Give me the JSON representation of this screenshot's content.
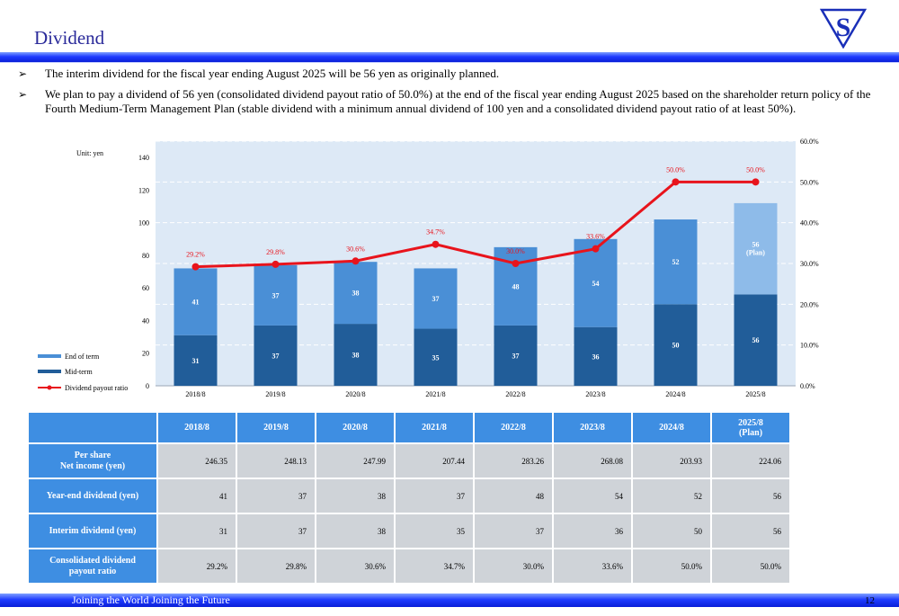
{
  "header": {
    "title": "Dividend",
    "logo_icon": "s-triangle-logo-icon"
  },
  "bullets": [
    "The interim dividend for the fiscal year ending August 2025 will be 56 yen as originally planned.",
    "We plan to pay a dividend of 56 yen (consolidated dividend payout ratio of 50.0%) at the end of the fiscal year ending August 2025 based on the shareholder return policy of the Fourth Medium-Term Management Plan (stable dividend with a minimum annual dividend of  100 yen and a consolidated dividend payout ratio of at least 50%)."
  ],
  "bullet_mark": "➢",
  "chart_data": {
    "type": "bar",
    "stacked": true,
    "unit_label": "Unit: yen",
    "categories": [
      "2018/8",
      "2019/8",
      "2020/8",
      "2021/8",
      "2022/8",
      "2023/8",
      "2024/8",
      "2025/8"
    ],
    "series": [
      {
        "name": "Mid-term",
        "values": [
          31,
          37,
          38,
          35,
          37,
          36,
          50,
          56
        ],
        "color": "#215d99"
      },
      {
        "name": "End of term",
        "values": [
          41,
          37,
          38,
          37,
          48,
          54,
          52,
          56
        ],
        "color": "#4a8fd6",
        "last_color": "#8ebbe9"
      }
    ],
    "end_of_term_labels": [
      "41",
      "37",
      "38",
      "37",
      "48",
      "54",
      "52",
      "56"
    ],
    "plan_label": "(Plan)",
    "line_series": {
      "name": "Dividend payout ratio",
      "values": [
        29.2,
        29.8,
        30.6,
        34.7,
        30.0,
        33.6,
        50.0,
        50.0
      ],
      "labels": [
        "29.2%",
        "29.8%",
        "30.6%",
        "34.7%",
        "30.0%",
        "33.6%",
        "50.0%",
        "50.0%"
      ],
      "color": "#e8141c"
    },
    "y_left": {
      "min": 0,
      "max": 150,
      "ticks": [
        0,
        20,
        40,
        60,
        80,
        100,
        120,
        140
      ]
    },
    "y_right": {
      "min": 0,
      "max": 60,
      "ticks": [
        0,
        10,
        20,
        30,
        40,
        50,
        60
      ],
      "tick_labels": [
        "0.0%",
        "10.0%",
        "20.0%",
        "30.0%",
        "40.0%",
        "50.0%",
        "60.0%"
      ]
    },
    "grid": true,
    "plot_background": "#dde9f6",
    "legend": [
      "End of term",
      "Mid-term",
      "Dividend payout ratio"
    ],
    "legend_position": "bottom-left"
  },
  "table": {
    "columns": [
      "2018/8",
      "2019/8",
      "2020/8",
      "2021/8",
      "2022/8",
      "2023/8",
      "2024/8",
      "2025/8"
    ],
    "last_column_note": "(Plan)",
    "rows": [
      {
        "label": "Per share",
        "label2": "Net income (yen)",
        "values": [
          "246.35",
          "248.13",
          "247.99",
          "207.44",
          "283.26",
          "268.08",
          "203.93",
          "224.06"
        ]
      },
      {
        "label": "Year-end dividend (yen)",
        "label2": "",
        "values": [
          "41",
          "37",
          "38",
          "37",
          "48",
          "54",
          "52",
          "56"
        ]
      },
      {
        "label": "Interim dividend (yen)",
        "label2": "",
        "values": [
          "31",
          "37",
          "38",
          "35",
          "37",
          "36",
          "50",
          "56"
        ]
      },
      {
        "label": "Consolidated dividend",
        "label2": "payout ratio",
        "values": [
          "29.2%",
          "29.8%",
          "30.6%",
          "34.7%",
          "30.0%",
          "33.6%",
          "50.0%",
          "50.0%"
        ]
      }
    ]
  },
  "footer": {
    "text": "Joining the World Joining the Future",
    "page": "12"
  }
}
